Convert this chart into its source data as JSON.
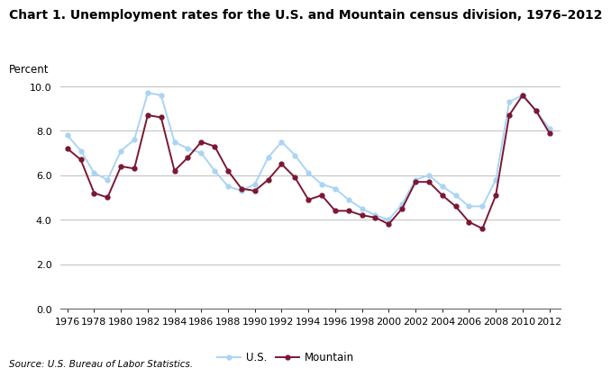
{
  "title": "Chart 1. Unemployment rates for the U.S. and Mountain census division, 1976–2012",
  "ylabel": "Percent",
  "source": "Source: U.S. Bureau of Labor Statistics.",
  "years": [
    1976,
    1977,
    1978,
    1979,
    1980,
    1981,
    1982,
    1983,
    1984,
    1985,
    1986,
    1987,
    1988,
    1989,
    1990,
    1991,
    1992,
    1993,
    1994,
    1995,
    1996,
    1997,
    1998,
    1999,
    2000,
    2001,
    2002,
    2003,
    2004,
    2005,
    2006,
    2007,
    2008,
    2009,
    2010,
    2011,
    2012
  ],
  "us_values": [
    7.8,
    7.1,
    6.1,
    5.8,
    7.1,
    7.6,
    9.7,
    9.6,
    7.5,
    7.2,
    7.0,
    6.2,
    5.5,
    5.3,
    5.6,
    6.8,
    7.5,
    6.9,
    6.1,
    5.6,
    5.4,
    4.9,
    4.5,
    4.2,
    4.0,
    4.7,
    5.8,
    6.0,
    5.5,
    5.1,
    4.6,
    4.6,
    5.8,
    9.3,
    9.6,
    8.9,
    8.1
  ],
  "mtn_values": [
    7.2,
    6.7,
    5.2,
    5.0,
    6.4,
    6.3,
    8.7,
    8.6,
    6.2,
    6.8,
    7.5,
    7.3,
    6.2,
    5.4,
    5.3,
    5.8,
    6.5,
    5.9,
    4.9,
    5.1,
    4.4,
    4.4,
    4.2,
    4.1,
    3.8,
    4.5,
    5.7,
    5.7,
    5.1,
    4.6,
    3.9,
    3.6,
    5.1,
    8.7,
    9.6,
    8.9,
    7.9
  ],
  "us_color": "#aad4f5",
  "mtn_color": "#7b1734",
  "ylim": [
    0.0,
    10.0
  ],
  "yticks": [
    0.0,
    2.0,
    4.0,
    6.0,
    8.0,
    10.0
  ],
  "xtick_step": 2,
  "grid_color": "#c0c0c0",
  "background_color": "#ffffff",
  "title_fontsize": 10,
  "ylabel_fontsize": 8.5,
  "tick_fontsize": 8,
  "legend_fontsize": 8.5,
  "source_fontsize": 7.5
}
